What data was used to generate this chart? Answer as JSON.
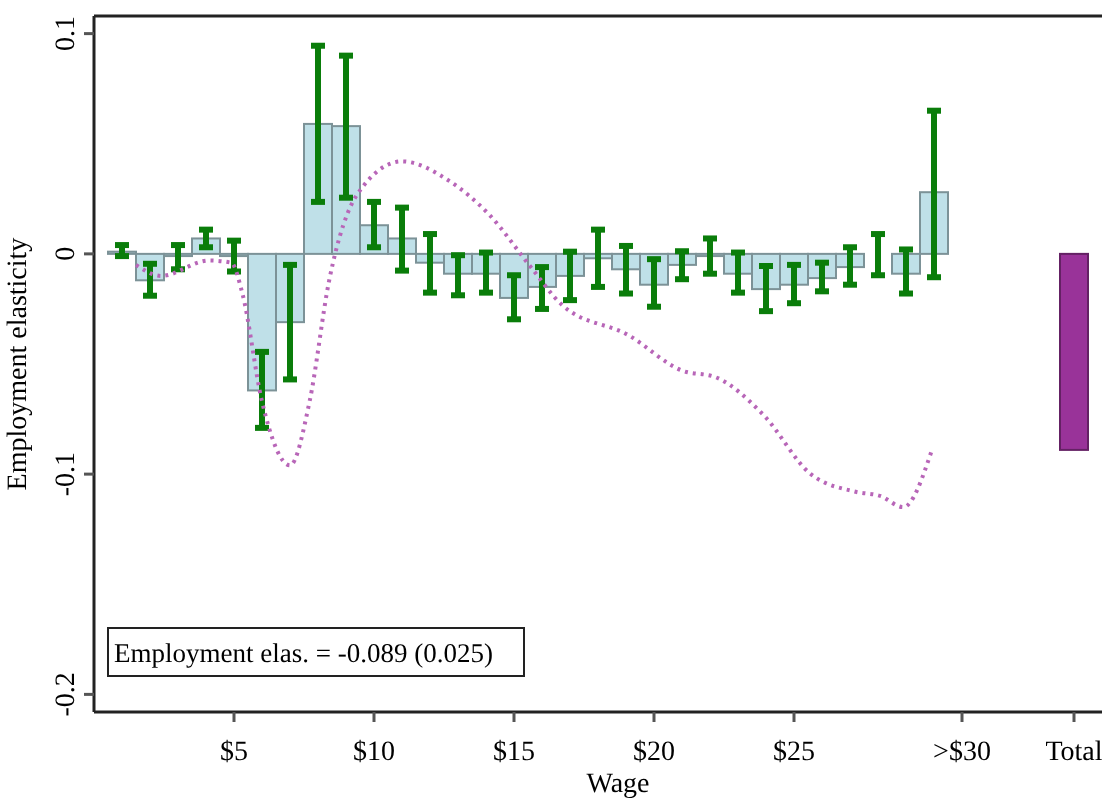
{
  "chart_data": {
    "type": "bar",
    "xlabel": "Wage",
    "ylabel": "Employment elasticity",
    "xlim": [
      0,
      36
    ],
    "ylim": [
      -0.208,
      0.108
    ],
    "xticks": [
      {
        "value": 5,
        "label": "$5"
      },
      {
        "value": 10,
        "label": "$10"
      },
      {
        "value": 15,
        "label": "$15"
      },
      {
        "value": 20,
        "label": "$20"
      },
      {
        "value": 25,
        "label": "$25"
      },
      {
        "value": 31,
        "label": ">$30"
      },
      {
        "value": 35,
        "label": "Total"
      }
    ],
    "yticks": [
      -0.2,
      -0.1,
      0,
      0.1
    ],
    "grid": false,
    "annotations": [
      "Employment elas. = -0.089 (0.025)"
    ],
    "series": [
      {
        "color": "#bfe0e8",
        "x": [
          1,
          2,
          3,
          4,
          5,
          6,
          7,
          8,
          9,
          10,
          11,
          12,
          13,
          14,
          15,
          16,
          17,
          18,
          19,
          20,
          21,
          22,
          23,
          24,
          25,
          26,
          27,
          28,
          29,
          30
        ],
        "values": [
          0.001,
          -0.012,
          -0.001,
          0.007,
          -0.001,
          -0.062,
          -0.031,
          0.059,
          0.058,
          0.013,
          0.007,
          -0.004,
          -0.009,
          -0.009,
          -0.02,
          -0.015,
          -0.01,
          -0.002,
          -0.007,
          -0.014,
          -0.005,
          -0.001,
          -0.009,
          -0.016,
          -0.014,
          -0.011,
          -0.006,
          0,
          -0.009,
          0.028
        ],
        "errors": [
          [
            -0.001,
            0.004
          ],
          [
            -0.019,
            -0.0045
          ],
          [
            -0.007,
            0.004
          ],
          [
            0.003,
            0.011
          ],
          [
            -0.008,
            0.006
          ],
          [
            -0.079,
            -0.0445
          ],
          [
            -0.057,
            -0.005
          ],
          [
            0.0236,
            0.0945
          ],
          [
            0.0255,
            0.09
          ],
          [
            0.003,
            0.0236
          ],
          [
            -0.0076,
            0.021
          ],
          [
            -0.0176,
            0.009
          ],
          [
            -0.0188,
            -0.0006
          ],
          [
            -0.0176,
            0.0006
          ],
          [
            -0.0297,
            -0.0097
          ],
          [
            -0.025,
            -0.006
          ],
          [
            -0.021,
            0.001
          ],
          [
            -0.015,
            0.011
          ],
          [
            -0.018,
            0.0036
          ],
          [
            -0.024,
            -0.0024
          ],
          [
            -0.0115,
            0.0012
          ],
          [
            -0.009,
            0.007
          ],
          [
            -0.0176,
            0.0006
          ],
          [
            -0.026,
            -0.0055
          ],
          [
            -0.0224,
            -0.005
          ],
          [
            -0.017,
            -0.004
          ],
          [
            -0.014,
            0.003
          ],
          [
            -0.0097,
            0.009
          ],
          [
            -0.018,
            0.002
          ],
          [
            -0.0106,
            0.065
          ]
        ]
      },
      {
        "type": "line",
        "color": "#b866b8",
        "line_style": "dotted",
        "x": [
          1.5,
          2.4,
          4.1,
          4.9,
          5.3,
          6,
          7,
          7.7,
          8.4,
          9.4,
          11,
          12.7,
          14.1,
          15.6,
          16.7,
          19.1,
          21,
          22.2,
          23.9,
          25.6,
          27.2,
          28.1,
          28.9,
          29.9
        ],
        "values": [
          -0.005,
          -0.01,
          -0.003,
          -0.004,
          -0.018,
          -0.067,
          -0.096,
          -0.067,
          -0.012,
          0.027,
          0.042,
          0.033,
          0.018,
          -0.006,
          -0.023,
          -0.037,
          -0.053,
          -0.056,
          -0.073,
          -0.1,
          -0.108,
          -0.11,
          -0.115,
          -0.09
        ]
      },
      {
        "type": "bar",
        "color": "#993399",
        "x": [
          35
        ],
        "values": [
          -0.089
        ]
      }
    ]
  }
}
